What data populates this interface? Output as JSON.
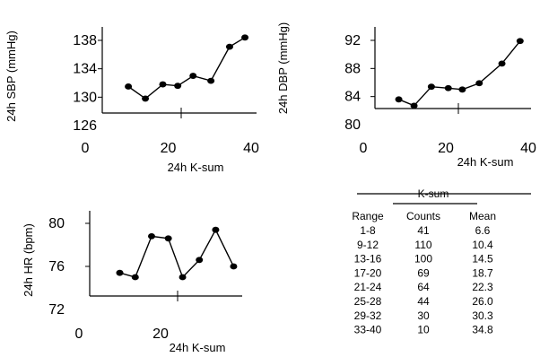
{
  "chart_data": [
    {
      "type": "line",
      "ylabel": "24h SBP (mmHg)",
      "xlabel": "24h K-sum",
      "xlim": [
        0,
        40
      ],
      "ylim": [
        126,
        140
      ],
      "xticks": [
        "0",
        "20",
        "40"
      ],
      "yticks": [
        "126",
        "130",
        "134",
        "138"
      ],
      "x": [
        10.4,
        14.5,
        18.7,
        22.3,
        26.0,
        30.3,
        34.8,
        38.5
      ],
      "y": [
        131.5,
        129.8,
        131.8,
        131.6,
        133.0,
        132.3,
        137.1,
        138.4
      ]
    },
    {
      "type": "line",
      "ylabel": "24h DBP (mmHg)",
      "xlabel": "24h K-sum",
      "xlim": [
        0,
        40
      ],
      "ylim": [
        80,
        94
      ],
      "xticks": [
        "0",
        "20",
        "40"
      ],
      "yticks": [
        "80",
        "84",
        "88",
        "92"
      ],
      "x": [
        8.6,
        12.3,
        16.5,
        20.6,
        24.0,
        28.1,
        33.6,
        38.0
      ],
      "y": [
        83.6,
        82.7,
        85.4,
        85.2,
        85.0,
        85.9,
        88.7,
        91.9
      ]
    },
    {
      "type": "line",
      "ylabel": "24h HR (bpm)",
      "xlabel": "24h K-sum",
      "xlim": [
        0,
        40
      ],
      "ylim": [
        72,
        82
      ],
      "xticks": [
        "0",
        "20"
      ],
      "yticks": [
        "72",
        "76",
        "80"
      ],
      "x": [
        10.0,
        13.8,
        17.8,
        21.9,
        25.4,
        29.5,
        33.5,
        37.9
      ],
      "y": [
        75.4,
        75.0,
        78.8,
        78.6,
        75.0,
        76.6,
        79.4,
        76.0
      ]
    },
    {
      "type": "table",
      "title": "K-sum",
      "columns": [
        "Range",
        "Counts",
        "Mean"
      ],
      "rows": [
        [
          "1-8",
          "41",
          "6.6"
        ],
        [
          "9-12",
          "110",
          "10.4"
        ],
        [
          "13-16",
          "100",
          "14.5"
        ],
        [
          "17-20",
          "69",
          "18.7"
        ],
        [
          "21-24",
          "64",
          "22.3"
        ],
        [
          "25-28",
          "44",
          "26.0"
        ],
        [
          "29-32",
          "30",
          "30.3"
        ],
        [
          "33-40",
          "10",
          "34.8"
        ]
      ]
    }
  ]
}
